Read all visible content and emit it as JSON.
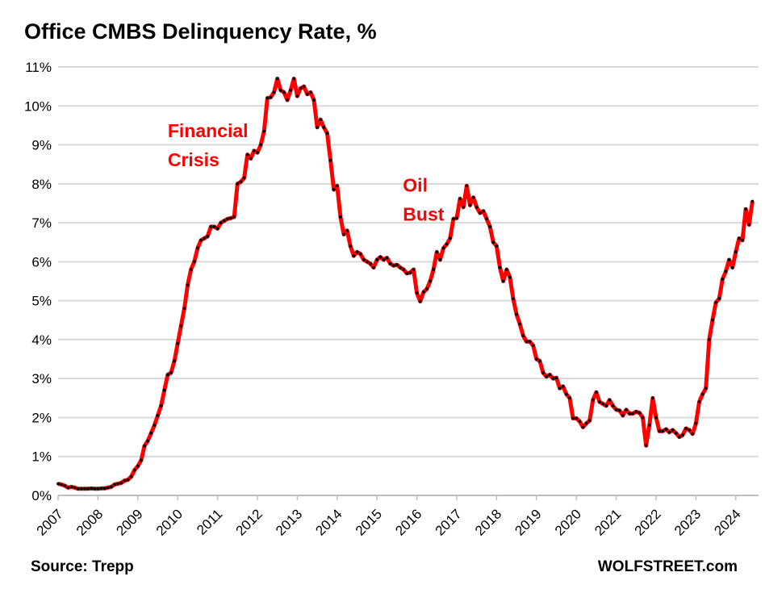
{
  "chart_data": {
    "type": "line",
    "title": "Office CMBS Delinquency Rate, %",
    "xlabel": "",
    "ylabel": "",
    "source": "Source: Trepp",
    "brand": "WOLFSTREET.com",
    "start_year": 2007,
    "frequency": "monthly",
    "x_tick_labels": [
      "2007",
      "2008",
      "2009",
      "2010",
      "2011",
      "2012",
      "2013",
      "2014",
      "2015",
      "2016",
      "2017",
      "2018",
      "2019",
      "2020",
      "2021",
      "2022",
      "2023",
      "2024"
    ],
    "y_tick_labels": [
      "0%",
      "1%",
      "2%",
      "3%",
      "4%",
      "5%",
      "6%",
      "7%",
      "8%",
      "9%",
      "10%",
      "11%"
    ],
    "ylim": [
      0,
      11
    ],
    "grid": true,
    "line_color": "#ff0000",
    "marker_color": "#000000",
    "annotations": [
      {
        "lines": [
          "Financial",
          "Crisis"
        ],
        "year": 2009.75,
        "value": 9.2
      },
      {
        "lines": [
          "Oil",
          "Bust"
        ],
        "year": 2015.65,
        "value": 7.8
      }
    ],
    "series": [
      {
        "name": "Office CMBS Delinquency Rate",
        "values": [
          0.3,
          0.28,
          0.25,
          0.2,
          0.22,
          0.2,
          0.17,
          0.17,
          0.17,
          0.17,
          0.18,
          0.17,
          0.17,
          0.18,
          0.18,
          0.2,
          0.22,
          0.28,
          0.3,
          0.32,
          0.38,
          0.4,
          0.48,
          0.65,
          0.75,
          0.9,
          1.27,
          1.4,
          1.6,
          1.8,
          2.05,
          2.3,
          2.7,
          3.1,
          3.15,
          3.45,
          3.9,
          4.35,
          4.8,
          5.4,
          5.8,
          6.0,
          6.35,
          6.55,
          6.6,
          6.65,
          6.9,
          6.9,
          6.85,
          7.0,
          7.05,
          7.1,
          7.12,
          7.15,
          8.0,
          8.05,
          8.15,
          8.75,
          8.65,
          8.85,
          8.8,
          9.0,
          9.35,
          10.2,
          10.22,
          10.35,
          10.7,
          10.4,
          10.35,
          10.15,
          10.4,
          10.7,
          10.25,
          10.45,
          10.5,
          10.3,
          10.35,
          10.15,
          9.45,
          9.65,
          9.45,
          9.3,
          8.6,
          7.85,
          7.95,
          7.15,
          6.7,
          6.8,
          6.4,
          6.15,
          6.25,
          6.2,
          6.05,
          6.0,
          5.95,
          5.85,
          6.05,
          6.12,
          6.05,
          6.1,
          5.95,
          5.9,
          5.92,
          5.85,
          5.8,
          5.7,
          5.72,
          5.8,
          5.2,
          4.98,
          5.22,
          5.3,
          5.5,
          5.8,
          6.25,
          6.05,
          6.35,
          6.45,
          6.6,
          7.1,
          7.12,
          7.62,
          7.4,
          7.95,
          7.45,
          7.65,
          7.4,
          7.25,
          7.3,
          7.1,
          6.9,
          6.5,
          6.4,
          5.85,
          5.5,
          5.8,
          5.6,
          5.05,
          4.65,
          4.4,
          4.1,
          3.95,
          3.95,
          3.85,
          3.5,
          3.45,
          3.15,
          3.05,
          3.1,
          3.0,
          3.02,
          2.75,
          2.8,
          2.6,
          2.5,
          1.98,
          1.98,
          1.9,
          1.75,
          1.85,
          1.92,
          2.45,
          2.65,
          2.4,
          2.35,
          2.3,
          2.45,
          2.3,
          2.2,
          2.18,
          2.05,
          2.2,
          2.1,
          2.1,
          2.15,
          2.12,
          2.0,
          1.28,
          1.8,
          2.5,
          2.0,
          1.65,
          1.65,
          1.7,
          1.62,
          1.68,
          1.6,
          1.5,
          1.55,
          1.72,
          1.68,
          1.58,
          1.85,
          2.4,
          2.6,
          2.75,
          4.0,
          4.5,
          4.95,
          5.05,
          5.55,
          5.75,
          6.05,
          5.85,
          6.25,
          6.6,
          6.55,
          7.35,
          6.95,
          7.55
        ]
      }
    ]
  }
}
